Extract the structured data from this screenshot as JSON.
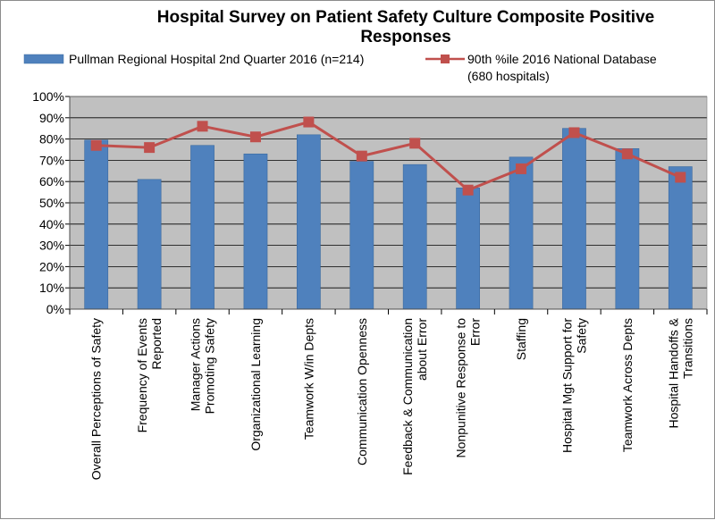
{
  "chart_data": {
    "type": "bar",
    "title_lines": [
      "Hospital Survey on Patient Safety Culture Composite Positive",
      "Responses"
    ],
    "ylim": [
      0,
      100
    ],
    "yticks": [
      "0%",
      "10%",
      "20%",
      "30%",
      "40%",
      "50%",
      "60%",
      "70%",
      "80%",
      "90%",
      "100%"
    ],
    "grid": true,
    "legend_position": "top",
    "categories": [
      [
        "Overall Perceptions of Safety"
      ],
      [
        "Frequency of Events",
        "Reported"
      ],
      [
        "Manager Actions",
        "Promoting Safety"
      ],
      [
        "Organizational Learning"
      ],
      [
        "Teamwork W/in Depts"
      ],
      [
        "Communication Openness"
      ],
      [
        "Feedback & Communication",
        "about Error"
      ],
      [
        "Nonpunitive Response to",
        "Error"
      ],
      [
        "Staffing"
      ],
      [
        "Hospital Mgt Support for",
        "Safety"
      ],
      [
        "Teamwork Across Depts"
      ],
      [
        "Hospital Handoffs &",
        "Transitions"
      ]
    ],
    "series": [
      {
        "name": "Pullman Regional Hospital 2nd Quarter 2016  (n=214)",
        "kind": "bar",
        "color": "#4f81bd",
        "values": [
          79.5,
          61,
          77,
          73,
          82,
          69.5,
          68,
          57,
          71.5,
          85,
          75.5,
          67
        ]
      },
      {
        "name_lines": [
          "90th %ile 2016 National Database",
          "(680 hospitals)"
        ],
        "kind": "line",
        "color": "#c0504d",
        "values": [
          77,
          76,
          86,
          81,
          88,
          72,
          78,
          56,
          66,
          83,
          73,
          62
        ]
      }
    ],
    "plot_bg": "#c0c0c0"
  }
}
